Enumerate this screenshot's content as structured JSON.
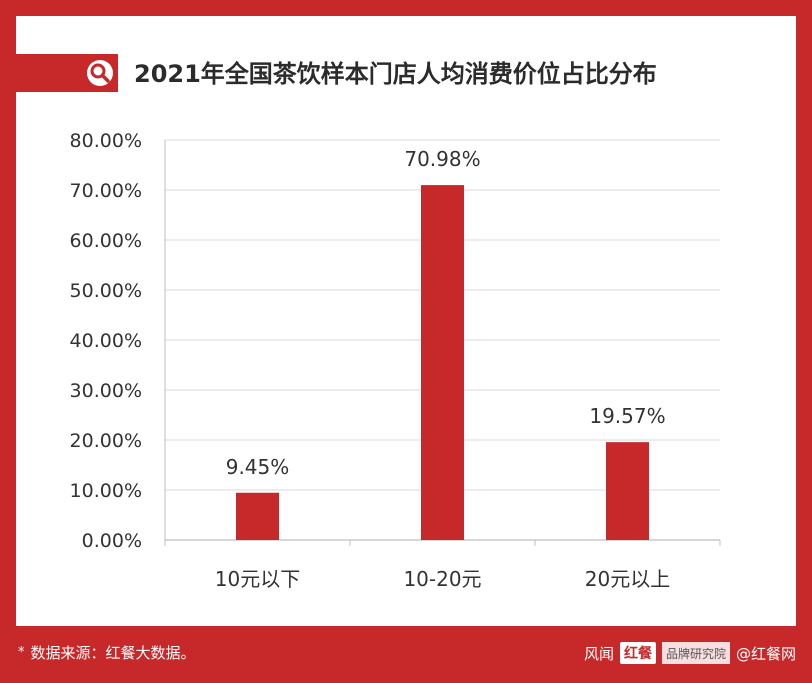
{
  "chart_data": {
    "type": "bar",
    "title": "2021年全国茶饮样本门店人均消费价位占比分布",
    "categories": [
      "10元以下",
      "10-20元",
      "20元以上"
    ],
    "values": [
      9.45,
      70.98,
      19.57
    ],
    "value_labels": [
      "9.45%",
      "70.98%",
      "19.57%"
    ],
    "ylim": [
      0,
      80
    ],
    "yticks": [
      0,
      10,
      20,
      30,
      40,
      50,
      60,
      70,
      80
    ],
    "ytick_labels": [
      "0.00%",
      "10.00%",
      "20.00%",
      "30.00%",
      "40.00%",
      "50.00%",
      "60.00%",
      "70.00%",
      "80.00%"
    ],
    "xlabel": "",
    "ylabel": "",
    "grid": true,
    "bar_color": "#c7282a"
  },
  "footer": {
    "star": "*",
    "source": "数据来源：红餐大数据。"
  },
  "watermark": {
    "prefix": "风闻",
    "logo": "红餐",
    "sub": "品牌研究院",
    "handle": "@红餐网"
  },
  "icons": {
    "title_badge": "search-icon"
  },
  "colors": {
    "brand": "#c7282a"
  }
}
